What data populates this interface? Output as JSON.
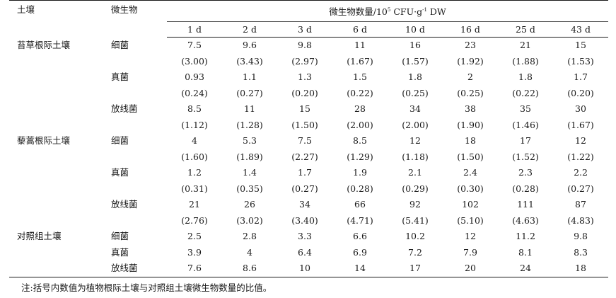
{
  "table": {
    "header": {
      "soil": "土壤",
      "microbe": "微生物",
      "group": "微生物数量/10",
      "group_sup": "5",
      "group_unit": "CFU·g",
      "group_unit_sup": "-1",
      "group_tail": "DW",
      "days": [
        "1 d",
        "2 d",
        "3 d",
        "6 d",
        "10 d",
        "16 d",
        "25 d",
        "43 d"
      ]
    },
    "groups": [
      {
        "soil": "苔草根际土壤",
        "rows": [
          {
            "microbe": "细菌",
            "values": [
              "7.5",
              "9.6",
              "9.8",
              "11",
              "16",
              "23",
              "21",
              "15"
            ],
            "ratios": [
              "(3.00)",
              "(3.43)",
              "(2.97)",
              "(1.67)",
              "(1.57)",
              "(1.92)",
              "(1.88)",
              "(1.53)"
            ]
          },
          {
            "microbe": "真菌",
            "values": [
              "0.93",
              "1.1",
              "1.3",
              "1.5",
              "1.8",
              "2",
              "1.8",
              "1.7"
            ],
            "ratios": [
              "(0.24)",
              "(0.27)",
              "(0.20)",
              "(0.22)",
              "(0.25)",
              "(0.25)",
              "(0.22)",
              "(0.20)"
            ]
          },
          {
            "microbe": "放线菌",
            "values": [
              "8.5",
              "11",
              "15",
              "28",
              "34",
              "38",
              "35",
              "30"
            ],
            "ratios": [
              "(1.12)",
              "(1.28)",
              "(1.50)",
              "(2.00)",
              "(2.00)",
              "(1.90)",
              "(1.46)",
              "(1.67)"
            ]
          }
        ]
      },
      {
        "soil": "藜蒿根际土壤",
        "rows": [
          {
            "microbe": "细菌",
            "values": [
              "4",
              "5.3",
              "7.5",
              "8.5",
              "12",
              "18",
              "17",
              "12"
            ],
            "ratios": [
              "(1.60)",
              "(1.89)",
              "(2.27)",
              "(1.29)",
              "(1.18)",
              "(1.50)",
              "(1.52)",
              "(1.22)"
            ]
          },
          {
            "microbe": "真菌",
            "values": [
              "1.2",
              "1.4",
              "1.7",
              "1.9",
              "2.1",
              "2.4",
              "2.3",
              "2.2"
            ],
            "ratios": [
              "(0.31)",
              "(0.35)",
              "(0.27)",
              "(0.28)",
              "(0.29)",
              "(0.30)",
              "(0.28)",
              "(0.27)"
            ]
          },
          {
            "microbe": "放线菌",
            "values": [
              "21",
              "26",
              "34",
              "66",
              "92",
              "102",
              "111",
              "87"
            ],
            "ratios": [
              "(2.76)",
              "(3.02)",
              "(3.40)",
              "(4.71)",
              "(5.41)",
              "(5.10)",
              "(4.63)",
              "(4.83)"
            ]
          }
        ]
      },
      {
        "soil": "对照组土壤",
        "rows": [
          {
            "microbe": "细菌",
            "values": [
              "2.5",
              "2.8",
              "3.3",
              "6.6",
              "10.2",
              "12",
              "11.2",
              "9.8"
            ],
            "ratios": null
          },
          {
            "microbe": "真菌",
            "values": [
              "3.9",
              "4",
              "6.4",
              "6.9",
              "7.2",
              "7.9",
              "8.1",
              "8.3"
            ],
            "ratios": null
          },
          {
            "microbe": "放线菌",
            "values": [
              "7.6",
              "8.6",
              "10",
              "14",
              "17",
              "20",
              "24",
              "18"
            ],
            "ratios": null
          }
        ]
      }
    ]
  },
  "note": "注:括号内数值为植物根际土壤与对照组土壤微生物数量的比值。"
}
